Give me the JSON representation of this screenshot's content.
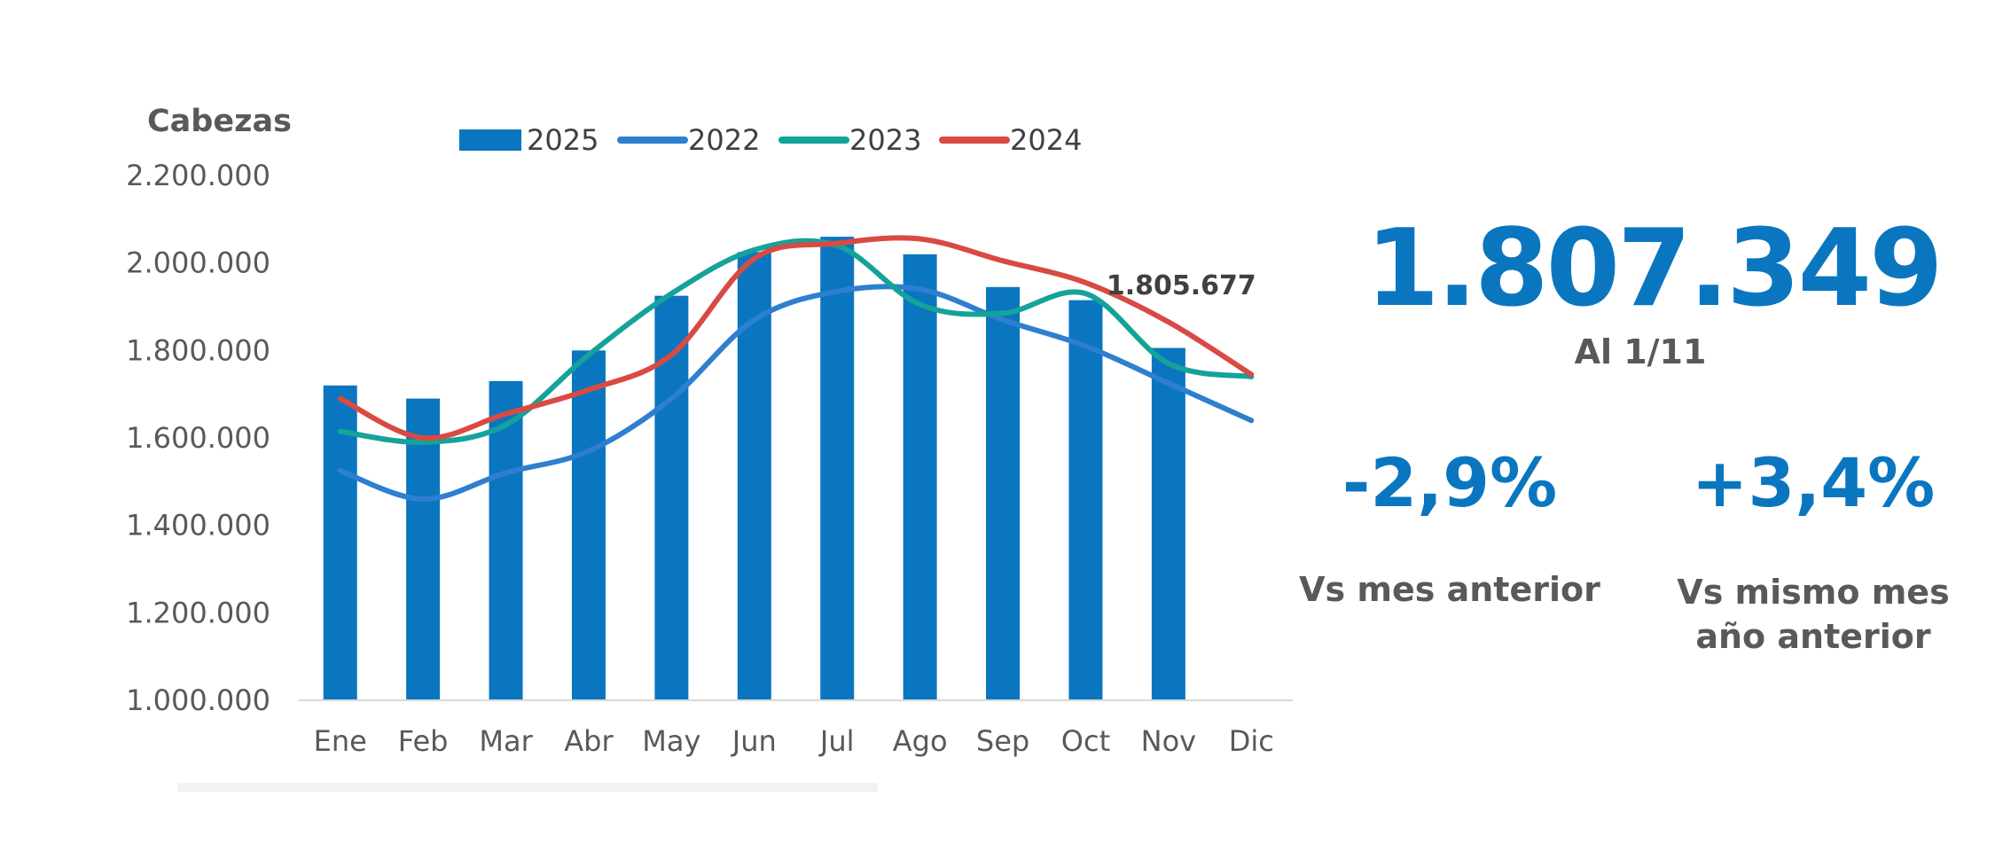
{
  "chart_data": {
    "type": "bar",
    "ylabel": "Cabezas",
    "categories": [
      "Ene",
      "Feb",
      "Mar",
      "Abr",
      "May",
      "Jun",
      "Jul",
      "Ago",
      "Sep",
      "Oct",
      "Nov",
      "Dic"
    ],
    "ylim": [
      1000000,
      2200000
    ],
    "yticks": [
      1000000,
      1200000,
      1400000,
      1600000,
      1800000,
      2000000,
      2200000
    ],
    "ytick_labels": [
      "1.000.000",
      "1.200.000",
      "1.400.000",
      "1.600.000",
      "1.800.000",
      "2.000.000",
      "2.200.000"
    ],
    "legend": [
      "2025",
      "2022",
      "2023",
      "2024"
    ],
    "legend_position": "top",
    "series": [
      {
        "name": "2025",
        "kind": "bar",
        "color": "#0b76c0",
        "values": [
          1720000,
          1690000,
          1730000,
          1800000,
          1925000,
          2025000,
          2060000,
          2020000,
          1945000,
          1915000,
          1805677,
          null
        ]
      },
      {
        "name": "2022",
        "kind": "line",
        "color": "#2e7fcf",
        "values": [
          1525000,
          1460000,
          1520000,
          1570000,
          1690000,
          1870000,
          1935000,
          1940000,
          1870000,
          1810000,
          1725000,
          1640000
        ]
      },
      {
        "name": "2023",
        "kind": "line",
        "color": "#14a39a",
        "values": [
          1615000,
          1590000,
          1630000,
          1790000,
          1930000,
          2030000,
          2040000,
          1905000,
          1885000,
          1930000,
          1770000,
          1740000
        ]
      },
      {
        "name": "2024",
        "kind": "line",
        "color": "#d94a43",
        "values": [
          1690000,
          1600000,
          1655000,
          1710000,
          1790000,
          2010000,
          2045000,
          2055000,
          2005000,
          1955000,
          1865000,
          1745000
        ]
      }
    ],
    "annotations": [
      {
        "text": "1.805.677",
        "category": "Nov",
        "series": "2025"
      }
    ]
  },
  "kpi": {
    "main_value": "1.807.349",
    "date_label": "Al 1/11",
    "mom_value": "-2,9%",
    "mom_label": "Vs mes anterior",
    "yoy_value": "+3,4%",
    "yoy_label": "Vs mismo mes año anterior"
  }
}
